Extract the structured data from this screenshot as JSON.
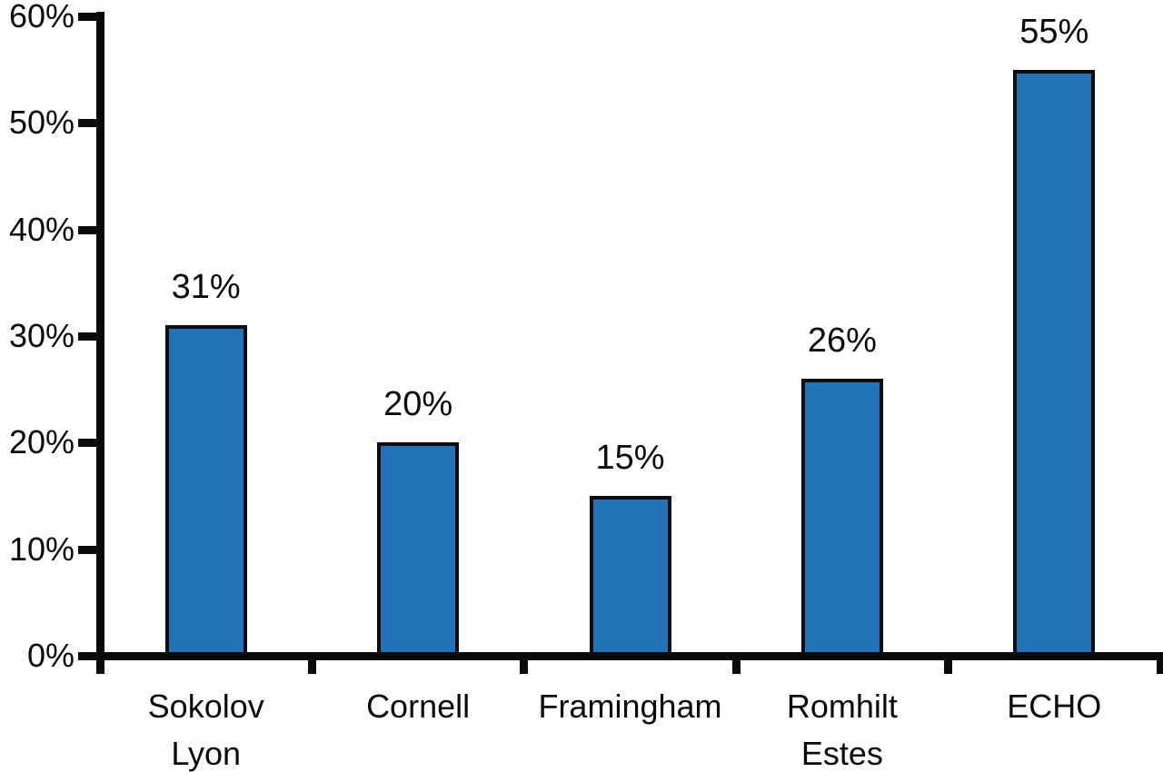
{
  "chart_data": {
    "type": "bar",
    "title": "",
    "xlabel": "",
    "ylabel": "",
    "categories": [
      "Sokolov Lyon",
      "Cornell",
      "Framingham",
      "Romhilt Estes",
      "ECHO"
    ],
    "category_lines": [
      [
        "Sokolov",
        "Lyon"
      ],
      [
        "Cornell"
      ],
      [
        "Framingham"
      ],
      [
        "Romhilt",
        "Estes"
      ],
      [
        "ECHO"
      ]
    ],
    "values": [
      31,
      20,
      15,
      26,
      55
    ],
    "bar_labels": [
      "31%",
      "20%",
      "15%",
      "26%",
      "55%"
    ],
    "ylim": [
      0,
      60
    ],
    "ytick_step": 10,
    "ytick_labels": [
      "0%",
      "10%",
      "20%",
      "30%",
      "40%",
      "50%",
      "60%"
    ],
    "grid": false,
    "legend": "none",
    "colors": {
      "bar_fill": "#2272B8",
      "bar_border": "#0d0d0d",
      "axis": "#0a0a0a",
      "text": "#0a0a0a",
      "background": "#ffffff"
    }
  }
}
